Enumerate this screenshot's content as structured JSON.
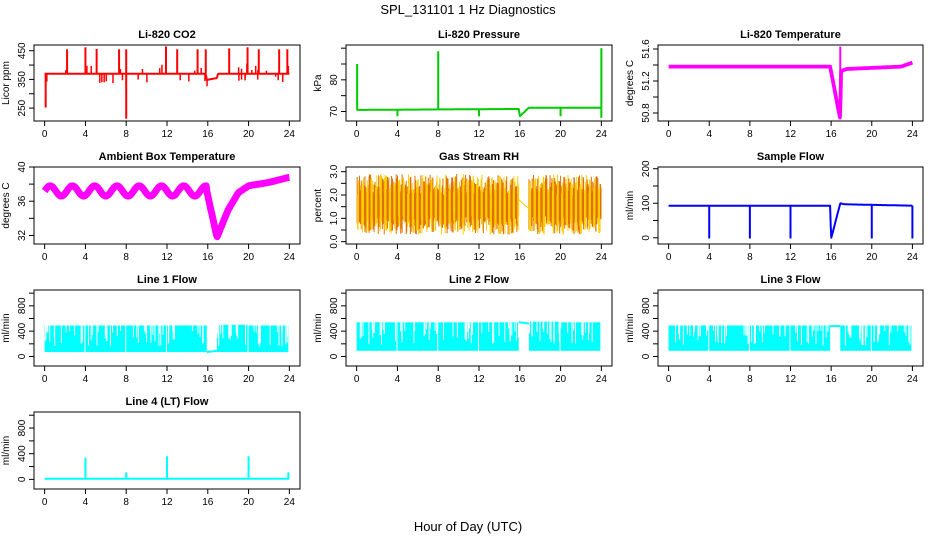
{
  "figure": {
    "title": "SPL_131101  1 Hz Diagnostics",
    "xlabel": "Hour of Day (UTC)"
  },
  "chart_data": [
    {
      "type": "line",
      "title": "Li-820 CO2",
      "ylabel": "Licor ppm",
      "color": "#ff0000",
      "xlim": [
        0,
        24
      ],
      "xticks": [
        0,
        4,
        8,
        12,
        16,
        20,
        24
      ],
      "ylim": [
        205,
        470
      ],
      "yticks": [
        250,
        300,
        350,
        400,
        450
      ],
      "ytick_labels": [
        "250",
        "",
        "350",
        "",
        "450"
      ],
      "baseline": [
        [
          0,
          370
        ],
        [
          15.8,
          370
        ],
        [
          15.9,
          348
        ],
        [
          16.9,
          355
        ],
        [
          17,
          370
        ],
        [
          24,
          370
        ]
      ],
      "spikes": [
        [
          0.1,
          252
        ],
        [
          2.2,
          455
        ],
        [
          4,
          462
        ],
        [
          5.1,
          456
        ],
        [
          7.3,
          455
        ],
        [
          8,
          213
        ],
        [
          8,
          455
        ],
        [
          11.9,
          465
        ],
        [
          13,
          455
        ],
        [
          15,
          455
        ],
        [
          15.8,
          455
        ],
        [
          18.1,
          458
        ],
        [
          19.9,
          462
        ],
        [
          21,
          455
        ],
        [
          23,
          455
        ],
        [
          23.8,
          455
        ]
      ]
    },
    {
      "type": "line",
      "title": "Li-820 Pressure",
      "ylabel": "kPa",
      "color": "#00cc00",
      "xlim": [
        0,
        24
      ],
      "xticks": [
        0,
        4,
        8,
        12,
        16,
        20,
        24
      ],
      "ylim": [
        67,
        91
      ],
      "yticks": [
        70,
        75,
        80,
        85,
        90
      ],
      "ytick_labels": [
        "70",
        "",
        "80",
        "",
        ""
      ],
      "baseline": [
        [
          0,
          70.5
        ],
        [
          15.9,
          70.8
        ],
        [
          16,
          68.5
        ],
        [
          16.9,
          71.2
        ],
        [
          24,
          71.2
        ]
      ],
      "spikes": [
        [
          0.05,
          85
        ],
        [
          8,
          89
        ],
        [
          24,
          90
        ],
        [
          4,
          68.5
        ],
        [
          12,
          68.5
        ],
        [
          20,
          68.5
        ],
        [
          24,
          68
        ]
      ]
    },
    {
      "type": "line",
      "title": "Li-820 Temperature",
      "ylabel": "degrees C",
      "color": "#ff00ff",
      "xlim": [
        0,
        24
      ],
      "xticks": [
        0,
        4,
        8,
        12,
        16,
        20,
        24
      ],
      "ylim": [
        50.7,
        51.65
      ],
      "yticks": [
        50.8,
        51.0,
        51.2,
        51.4,
        51.6
      ],
      "ytick_labels": [
        "50.8",
        "",
        "51.2",
        "",
        "51.6"
      ],
      "baseline": [
        [
          0,
          51.38
        ],
        [
          15.9,
          51.38
        ],
        [
          16.9,
          50.72
        ],
        [
          16.95,
          51.32
        ],
        [
          17.5,
          51.35
        ],
        [
          22.9,
          51.38
        ],
        [
          24,
          51.43
        ]
      ],
      "spikes": [
        [
          16.9,
          51.63
        ]
      ]
    },
    {
      "type": "line",
      "title": "Ambient Box Temperature",
      "ylabel": "degrees C",
      "color": "#ff00ff",
      "xlim": [
        0,
        24
      ],
      "xticks": [
        0,
        4,
        8,
        12,
        16,
        20,
        24
      ],
      "ylim": [
        31,
        40
      ],
      "yticks": [
        32,
        34,
        36,
        38,
        40
      ],
      "ytick_labels": [
        "32",
        "",
        "36",
        "",
        "40"
      ],
      "baseline": [
        [
          0,
          37.2
        ],
        [
          15.9,
          37.2
        ],
        [
          16.9,
          31.8
        ],
        [
          18,
          35
        ],
        [
          19,
          37
        ],
        [
          20,
          37.8
        ],
        [
          22,
          38.2
        ],
        [
          24,
          38.8
        ]
      ],
      "spikes": []
    },
    {
      "type": "line",
      "title": "Gas Stream RH",
      "ylabel": "percent",
      "color": "#ffcc00",
      "xlim": [
        0,
        24
      ],
      "xticks": [
        0,
        4,
        8,
        12,
        16,
        20,
        24
      ],
      "ylim": [
        -0.1,
        3.2
      ],
      "yticks": [
        0.0,
        0.5,
        1.0,
        1.5,
        2.0,
        2.5,
        3.0
      ],
      "ytick_labels": [
        "0.0",
        "",
        "1.0",
        "",
        "2.0",
        "",
        "3.0"
      ],
      "baseline": [
        [
          0,
          1.5
        ],
        [
          15.9,
          1.5
        ],
        [
          16.9,
          1.6
        ],
        [
          24,
          1.6
        ]
      ],
      "spikes": []
    },
    {
      "type": "line",
      "title": "Sample Flow",
      "ylabel": "ml/min",
      "color": "#0000ff",
      "xlim": [
        0,
        24
      ],
      "xticks": [
        0,
        4,
        8,
        12,
        16,
        20,
        24
      ],
      "ylim": [
        -18,
        205
      ],
      "yticks": [
        0,
        50,
        100,
        150,
        200
      ],
      "ytick_labels": [
        "0",
        "",
        "100",
        "",
        "200"
      ],
      "baseline": [
        [
          0,
          93
        ],
        [
          15.9,
          93
        ],
        [
          16,
          -2
        ],
        [
          16.9,
          100
        ],
        [
          17.3,
          97
        ],
        [
          24,
          93
        ]
      ],
      "spikes": [
        [
          4,
          -2
        ],
        [
          8,
          -2
        ],
        [
          12,
          -2
        ],
        [
          20,
          -2
        ],
        [
          24,
          -2
        ]
      ]
    },
    {
      "type": "area",
      "title": "Line 1 Flow",
      "ylabel": "ml/min",
      "color": "#00ffff",
      "xlim": [
        0,
        24
      ],
      "xticks": [
        0,
        4,
        8,
        12,
        16,
        20,
        24
      ],
      "ylim": [
        -150,
        1050
      ],
      "yticks": [
        0,
        200,
        400,
        600,
        800,
        1000
      ],
      "ytick_labels": [
        "0",
        "",
        "400",
        "",
        "800",
        ""
      ],
      "bands": [
        [
          0,
          3.9,
          70,
          490
        ],
        [
          4,
          7.9,
          70,
          490
        ],
        [
          8,
          11.9,
          70,
          490
        ],
        [
          12,
          15.9,
          70,
          490
        ],
        [
          16.9,
          19.9,
          70,
          500
        ],
        [
          20,
          23.9,
          70,
          490
        ]
      ],
      "baseline": [
        [
          15.9,
          70
        ],
        [
          16.9,
          90
        ]
      ],
      "spikes": []
    },
    {
      "type": "area",
      "title": "Line 2 Flow",
      "ylabel": "ml/min",
      "color": "#00ffff",
      "xlim": [
        0,
        24
      ],
      "xticks": [
        0,
        4,
        8,
        12,
        16,
        20,
        24
      ],
      "ylim": [
        -150,
        1050
      ],
      "yticks": [
        0,
        200,
        400,
        600,
        800,
        1000
      ],
      "ytick_labels": [
        "0",
        "",
        "400",
        "",
        "800",
        ""
      ],
      "bands": [
        [
          0,
          3.9,
          90,
          540
        ],
        [
          4,
          7.9,
          90,
          540
        ],
        [
          8,
          11.9,
          90,
          540
        ],
        [
          12,
          15.9,
          90,
          540
        ],
        [
          16.9,
          19.9,
          90,
          550
        ],
        [
          20,
          23.9,
          90,
          540
        ]
      ],
      "baseline": [
        [
          15.9,
          540
        ],
        [
          16.9,
          520
        ]
      ],
      "spikes": []
    },
    {
      "type": "area",
      "title": "Line 3 Flow",
      "ylabel": "ml/min",
      "color": "#00ffff",
      "xlim": [
        0,
        24
      ],
      "xticks": [
        0,
        4,
        8,
        12,
        16,
        20,
        24
      ],
      "ylim": [
        -150,
        1050
      ],
      "yticks": [
        0,
        200,
        400,
        600,
        800,
        1000
      ],
      "ytick_labels": [
        "0",
        "",
        "400",
        "",
        "800",
        ""
      ],
      "bands": [
        [
          0,
          3.9,
          90,
          490
        ],
        [
          4,
          7.9,
          90,
          490
        ],
        [
          8,
          11.9,
          90,
          490
        ],
        [
          12,
          15.9,
          90,
          490
        ],
        [
          16.9,
          19.9,
          90,
          490
        ],
        [
          20,
          23.9,
          90,
          490
        ]
      ],
      "baseline": [
        [
          15.9,
          480
        ],
        [
          16.9,
          480
        ]
      ],
      "spikes": [
        [
          4,
          10
        ],
        [
          12,
          0
        ],
        [
          20,
          0
        ]
      ]
    },
    {
      "type": "line",
      "title": "Line 4 (LT) Flow",
      "ylabel": "ml/min",
      "color": "#00ffff",
      "xlim": [
        0,
        24
      ],
      "xticks": [
        0,
        4,
        8,
        12,
        16,
        20,
        24
      ],
      "ylim": [
        -150,
        1050
      ],
      "yticks": [
        0,
        200,
        400,
        600,
        800,
        1000
      ],
      "ytick_labels": [
        "0",
        "",
        "400",
        "",
        "800",
        ""
      ],
      "baseline": [
        [
          0,
          10
        ],
        [
          24,
          10
        ]
      ],
      "spikes": [
        [
          4,
          340
        ],
        [
          8,
          110
        ],
        [
          12,
          360
        ],
        [
          20,
          360
        ],
        [
          23.9,
          110
        ]
      ]
    }
  ]
}
